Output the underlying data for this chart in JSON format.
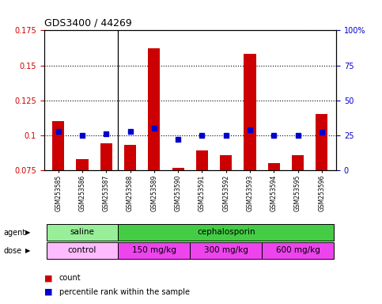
{
  "title": "GDS3400 / 44269",
  "samples": [
    "GSM253585",
    "GSM253586",
    "GSM253587",
    "GSM253588",
    "GSM253589",
    "GSM253590",
    "GSM253591",
    "GSM253592",
    "GSM253593",
    "GSM253594",
    "GSM253595",
    "GSM253596"
  ],
  "count_values": [
    0.11,
    0.083,
    0.094,
    0.093,
    0.162,
    0.077,
    0.089,
    0.086,
    0.158,
    0.08,
    0.086,
    0.115
  ],
  "percentile_values": [
    0.103,
    0.1,
    0.101,
    0.103,
    0.105,
    0.097,
    0.1,
    0.1,
    0.104,
    0.1,
    0.1,
    0.102
  ],
  "bar_bottom": 0.075,
  "ylim_left": [
    0.075,
    0.175
  ],
  "yticks_left": [
    0.075,
    0.1,
    0.125,
    0.15,
    0.175
  ],
  "ytick_labels_left": [
    "0.075",
    "0.1",
    "0.125",
    "0.15",
    "0.175"
  ],
  "ytick_labels_right": [
    "0",
    "25",
    "50",
    "75",
    "100%"
  ],
  "bar_color": "#cc0000",
  "percentile_color": "#0000cc",
  "agent_groups": [
    {
      "label": "saline",
      "start": 0,
      "end": 3,
      "color": "#99ee99"
    },
    {
      "label": "cephalosporin",
      "start": 3,
      "end": 12,
      "color": "#44cc44"
    }
  ],
  "dose_colors": [
    "#ffbbff",
    "#ee44ee",
    "#ee44ee",
    "#ee44ee"
  ],
  "dose_groups": [
    {
      "label": "control",
      "start": 0,
      "end": 3
    },
    {
      "label": "150 mg/kg",
      "start": 3,
      "end": 6
    },
    {
      "label": "300 mg/kg",
      "start": 6,
      "end": 9
    },
    {
      "label": "600 mg/kg",
      "start": 9,
      "end": 12
    }
  ],
  "background_color": "#ffffff",
  "tick_label_color_left": "#cc0000",
  "tick_label_color_right": "#0000cc",
  "legend_count_label": "count",
  "legend_percentile_label": "percentile rank within the sample",
  "agent_label": "agent",
  "dose_label": "dose",
  "group_dividers": [
    2.5
  ]
}
